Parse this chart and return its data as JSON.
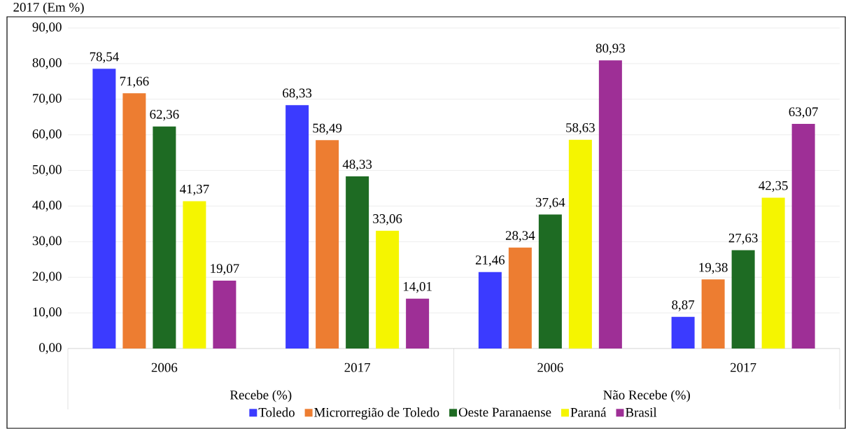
{
  "chart_data": {
    "type": "bar",
    "title": "2017 (Em %)",
    "categories": [
      "2006",
      "2017",
      "2006",
      "2017"
    ],
    "series": [
      {
        "name": "Toledo",
        "color": "#3b3bff",
        "values": [
          78.54,
          68.33,
          21.46,
          8.87
        ],
        "value_labels": [
          "78,54",
          "68,33",
          "21,46",
          "8,87"
        ]
      },
      {
        "name": "Microrregião de Toledo",
        "color": "#ed7d31",
        "values": [
          71.66,
          58.49,
          28.34,
          19.38
        ],
        "value_labels": [
          "71,66",
          "58,49",
          "28,34",
          "19,38"
        ]
      },
      {
        "name": "Oeste Paranaense",
        "color": "#1e6b23",
        "values": [
          62.36,
          48.33,
          37.64,
          27.63
        ],
        "value_labels": [
          "62,36",
          "48,33",
          "37,64",
          "27,63"
        ]
      },
      {
        "name": "Paraná",
        "color": "#f5f500",
        "values": [
          41.37,
          33.06,
          58.63,
          42.35
        ],
        "value_labels": [
          "41,37",
          "33,06",
          "58,63",
          "42,35"
        ]
      },
      {
        "name": "Brasil",
        "color": "#9e2f96",
        "values": [
          19.07,
          14.01,
          80.93,
          63.07
        ],
        "value_labels": [
          "19,07",
          "14,01",
          "80,93",
          "63,07"
        ]
      }
    ],
    "ylim": [
      0,
      90
    ],
    "yticks": [
      {
        "value": 0,
        "label": "0,00"
      },
      {
        "value": 10,
        "label": "10,00"
      },
      {
        "value": 20,
        "label": "20,00"
      },
      {
        "value": 30,
        "label": "30,00"
      },
      {
        "value": 40,
        "label": "40,00"
      },
      {
        "value": 50,
        "label": "50,00"
      },
      {
        "value": 60,
        "label": "60,00"
      },
      {
        "value": 70,
        "label": "70,00"
      },
      {
        "value": 80,
        "label": "80,00"
      },
      {
        "value": 90,
        "label": "90,00"
      }
    ],
    "grid": "y",
    "legend": "bottom",
    "annotations": [
      "Recebe (%)",
      "Não Recebe (%)"
    ]
  }
}
